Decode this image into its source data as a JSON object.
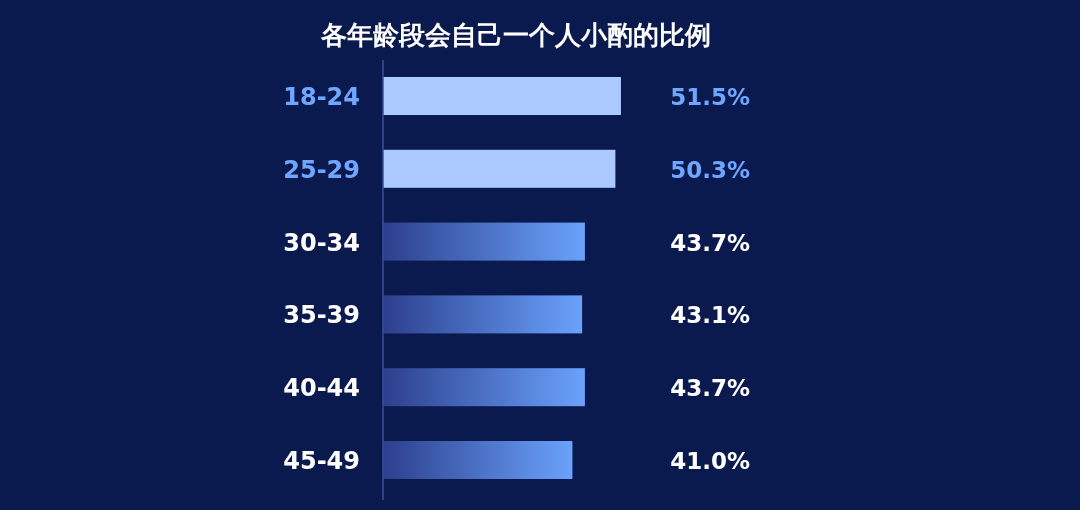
{
  "chart_data": {
    "type": "bar",
    "orientation": "horizontal",
    "title": "各年龄段会自己一个人小酌的比例",
    "categories": [
      "18-24",
      "25-29",
      "30-34",
      "35-39",
      "40-44",
      "45-49"
    ],
    "values": [
      51.5,
      50.3,
      43.7,
      43.1,
      43.7,
      41.0
    ],
    "value_labels": [
      "51.5%",
      "50.3%",
      "43.7%",
      "43.1%",
      "43.7%",
      "41.0%"
    ],
    "colors": [
      "#abc9fe",
      "#abc9fe",
      "#6aa2fc",
      "#6aa2fc",
      "#6aa2fc",
      "#6aa2fc"
    ]
  }
}
